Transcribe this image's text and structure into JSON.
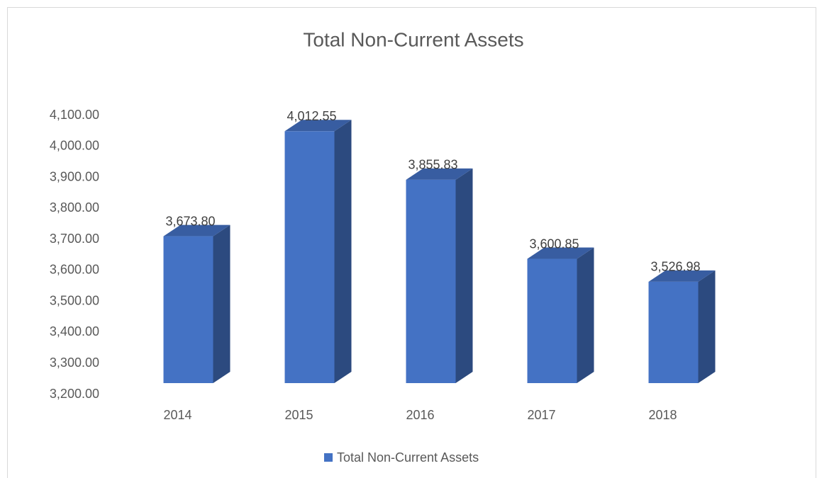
{
  "chart_data": {
    "type": "bar3d",
    "title": "Total Non-Current Assets",
    "categories": [
      "2014",
      "2015",
      "2016",
      "2017",
      "2018"
    ],
    "series": [
      {
        "name": "Total Non-Current Assets",
        "color": "#4472c4",
        "values": [
          3673.8,
          4012.55,
          3855.83,
          3600.85,
          3526.98
        ],
        "value_labels": [
          "3,673.80",
          "4,012.55",
          "3,855.83",
          "3,600.85",
          "3,526.98"
        ]
      }
    ],
    "ylim": [
      3200,
      4100
    ],
    "yticks": [
      {
        "value": 3200,
        "label": "3,200.00"
      },
      {
        "value": 3300,
        "label": "3,300.00"
      },
      {
        "value": 3400,
        "label": "3,400.00"
      },
      {
        "value": 3500,
        "label": "3,500.00"
      },
      {
        "value": 3600,
        "label": "3,600.00"
      },
      {
        "value": 3700,
        "label": "3,700.00"
      },
      {
        "value": 3800,
        "label": "3,800.00"
      },
      {
        "value": 3900,
        "label": "3,900.00"
      },
      {
        "value": 4000,
        "label": "4,000.00"
      },
      {
        "value": 4100,
        "label": "4,100.00"
      }
    ],
    "grid": false,
    "legend": "bottom"
  }
}
